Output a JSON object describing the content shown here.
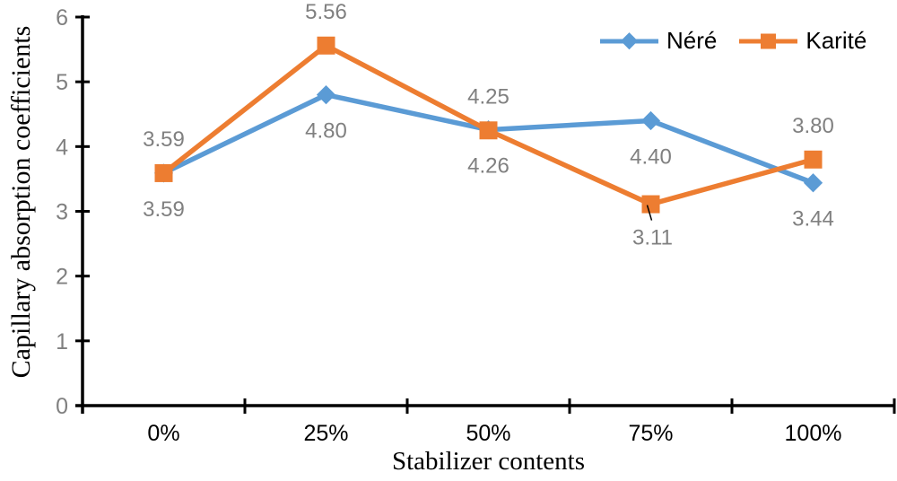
{
  "chart_data": {
    "type": "line",
    "title": "",
    "xlabel": "Stabilizer contents",
    "ylabel": "Capillary absorption coefficients",
    "categories": [
      "0%",
      "25%",
      "50%",
      "75%",
      "100%"
    ],
    "yticks": [
      0,
      1,
      2,
      3,
      4,
      5,
      6
    ],
    "ylim": [
      0,
      6
    ],
    "grid": false,
    "legend_position": "top-right",
    "axis_color": "#000000",
    "data_label_color": "#808080",
    "ytick_label_color": "#808080",
    "xtick_label_color": "#000000",
    "series": [
      {
        "name": "Néré",
        "color": "#5B9BD5",
        "marker": "diamond",
        "values": [
          3.59,
          4.8,
          4.26,
          4.4,
          3.44
        ],
        "labels": [
          "3.59",
          "4.80",
          "4.26",
          "4.40",
          "3.44"
        ],
        "label_positions": [
          "below",
          "below",
          "below",
          "below",
          "below"
        ]
      },
      {
        "name": "Karité",
        "color": "#ED7D31",
        "marker": "square",
        "values": [
          3.59,
          5.56,
          4.25,
          3.11,
          3.8
        ],
        "labels": [
          "3.59",
          "5.56",
          "4.25",
          "3.11",
          "3.80"
        ],
        "label_positions": [
          "above",
          "above",
          "above",
          "below-leader",
          "above"
        ]
      }
    ]
  }
}
